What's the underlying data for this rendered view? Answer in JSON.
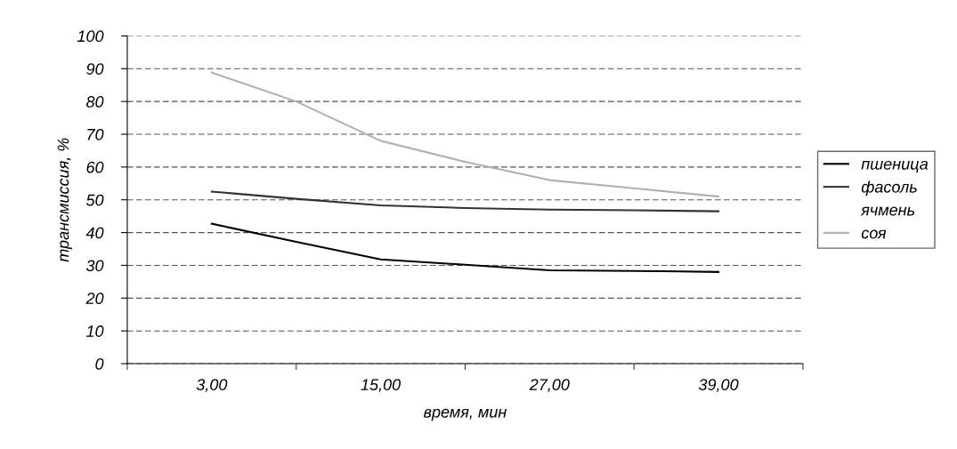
{
  "chart_data": {
    "type": "line",
    "xlabel": "время, мин",
    "ylabel": "трансмиссия, %",
    "categories": [
      "3,00",
      null,
      "15,00",
      null,
      "27,00",
      null,
      "39,00"
    ],
    "series": [
      {
        "name": "пшеница",
        "color": "#000000",
        "values": [
          42.7,
          37.2,
          31.8,
          30.2,
          28.5,
          28.3,
          28.0
        ]
      },
      {
        "name": "фасоль",
        "color": "#333333",
        "values": [
          52.5,
          50.3,
          48.3,
          47.5,
          47.0,
          46.8,
          46.5
        ]
      },
      {
        "name": "ячмень",
        "values": [
          null,
          null,
          null,
          null,
          null,
          null,
          null
        ]
      },
      {
        "name": "соя",
        "color": "#b0b0b0",
        "values": [
          88.8,
          80.0,
          68.0,
          61.6,
          56.0,
          53.5,
          51.0
        ]
      }
    ],
    "ylim": [
      0,
      100
    ],
    "yticks": [
      0,
      10,
      20,
      30,
      40,
      50,
      60,
      70,
      80,
      90,
      100
    ],
    "grid": "y",
    "legend": "right",
    "marker": "none",
    "line_style": "solid"
  }
}
